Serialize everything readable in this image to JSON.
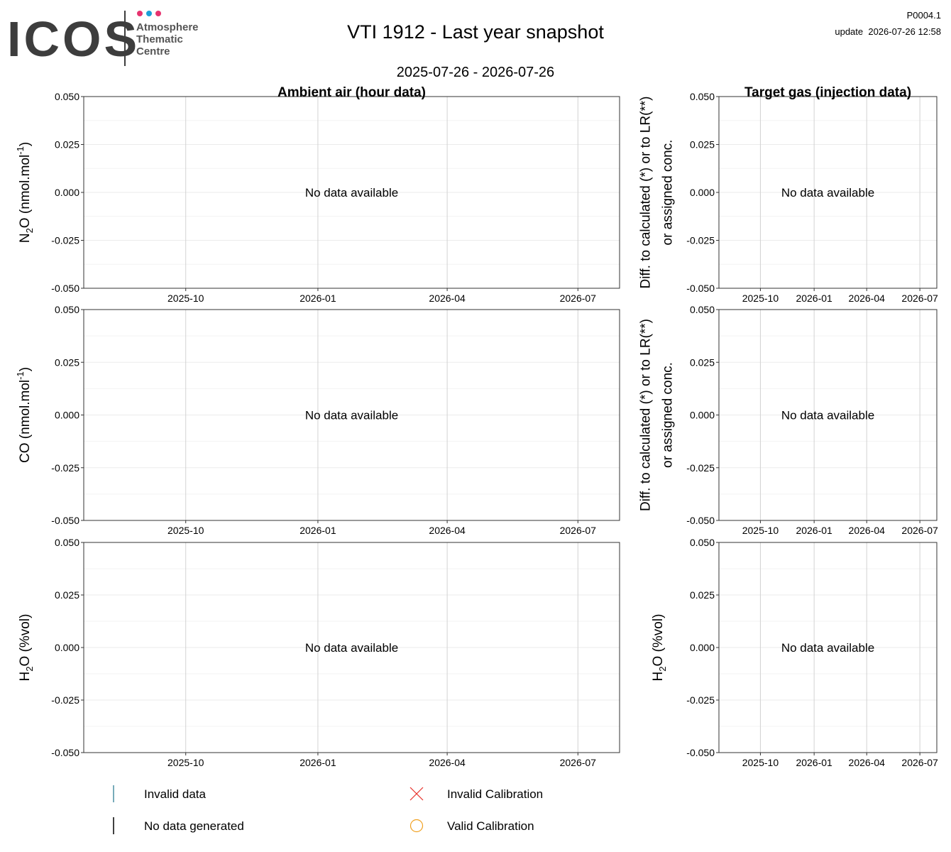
{
  "header": {
    "logo": "ICOS",
    "logo_lines": [
      "Atmosphere",
      "Thematic",
      "Centre"
    ],
    "title": "VTI 1912 - Last year snapshot",
    "subtitle": "2025-07-26 - 2026-07-26",
    "code": "P0004.1",
    "update": "update  2026-07-26 12:58"
  },
  "chart_data": [
    {
      "type": "line",
      "title": "Ambient air (hour data)",
      "annotation": "No data available",
      "ylabel": [
        [
          {
            "text": "N"
          },
          {
            "text": "2",
            "baseline": "sub"
          },
          {
            "text": "O (nmol.mol"
          },
          {
            "text": "-1",
            "baseline": "super"
          },
          {
            "text": ")"
          }
        ]
      ],
      "xlim": [
        "2025-07-22",
        "2026-07-30"
      ],
      "xticks": [
        {
          "value": "2025-10-01",
          "label": "2025-10"
        },
        {
          "value": "2026-01-01",
          "label": "2026-01"
        },
        {
          "value": "2026-04-01",
          "label": "2026-04"
        },
        {
          "value": "2026-07-01",
          "label": "2026-07"
        }
      ],
      "ylim": [
        -0.05,
        0.05
      ],
      "yticks": [
        {
          "value": -0.05,
          "label": "-0.050"
        },
        {
          "value": -0.025,
          "label": "-0.025"
        },
        {
          "value": 0,
          "label": "0.000"
        },
        {
          "value": 0.025,
          "label": "0.025"
        },
        {
          "value": 0.05,
          "label": "0.050"
        }
      ],
      "grid": true
    },
    {
      "type": "line",
      "title": "Target gas (injection data)",
      "annotation": "No data available",
      "ylabel": [
        [
          {
            "text": "Diff. to calculated (*) or to LR(**)"
          }
        ],
        [
          {
            "text": "or assigned conc."
          }
        ]
      ],
      "xlim": [
        "2025-07-22",
        "2026-07-30"
      ],
      "xticks": [
        {
          "value": "2025-10-01",
          "label": "2025-10"
        },
        {
          "value": "2026-01-01",
          "label": "2026-01"
        },
        {
          "value": "2026-04-01",
          "label": "2026-04"
        },
        {
          "value": "2026-07-01",
          "label": "2026-07"
        }
      ],
      "ylim": [
        -0.05,
        0.05
      ],
      "yticks": [
        {
          "value": -0.05,
          "label": "-0.050"
        },
        {
          "value": -0.025,
          "label": "-0.025"
        },
        {
          "value": 0,
          "label": "0.000"
        },
        {
          "value": 0.025,
          "label": "0.025"
        },
        {
          "value": 0.05,
          "label": "0.050"
        }
      ],
      "grid": true
    },
    {
      "type": "line",
      "annotation": "No data available",
      "ylabel": [
        [
          {
            "text": "CO (nmol.mol"
          },
          {
            "text": "-1",
            "baseline": "super"
          },
          {
            "text": ")"
          }
        ]
      ],
      "xlim": [
        "2025-07-22",
        "2026-07-30"
      ],
      "xticks": [
        {
          "value": "2025-10-01",
          "label": "2025-10"
        },
        {
          "value": "2026-01-01",
          "label": "2026-01"
        },
        {
          "value": "2026-04-01",
          "label": "2026-04"
        },
        {
          "value": "2026-07-01",
          "label": "2026-07"
        }
      ],
      "ylim": [
        -0.05,
        0.05
      ],
      "yticks": [
        {
          "value": -0.05,
          "label": "-0.050"
        },
        {
          "value": -0.025,
          "label": "-0.025"
        },
        {
          "value": 0,
          "label": "0.000"
        },
        {
          "value": 0.025,
          "label": "0.025"
        },
        {
          "value": 0.05,
          "label": "0.050"
        }
      ],
      "grid": true
    },
    {
      "type": "line",
      "annotation": "No data available",
      "ylabel": [
        [
          {
            "text": "Diff. to calculated (*) or to LR(**)"
          }
        ],
        [
          {
            "text": "or assigned conc."
          }
        ]
      ],
      "xlim": [
        "2025-07-22",
        "2026-07-30"
      ],
      "xticks": [
        {
          "value": "2025-10-01",
          "label": "2025-10"
        },
        {
          "value": "2026-01-01",
          "label": "2026-01"
        },
        {
          "value": "2026-04-01",
          "label": "2026-04"
        },
        {
          "value": "2026-07-01",
          "label": "2026-07"
        }
      ],
      "ylim": [
        -0.05,
        0.05
      ],
      "yticks": [
        {
          "value": -0.05,
          "label": "-0.050"
        },
        {
          "value": -0.025,
          "label": "-0.025"
        },
        {
          "value": 0,
          "label": "0.000"
        },
        {
          "value": 0.025,
          "label": "0.025"
        },
        {
          "value": 0.05,
          "label": "0.050"
        }
      ],
      "grid": true
    },
    {
      "type": "line",
      "annotation": "No data available",
      "ylabel": [
        [
          {
            "text": "H"
          },
          {
            "text": "2",
            "baseline": "sub"
          },
          {
            "text": "O (%vol)"
          }
        ]
      ],
      "xlim": [
        "2025-07-22",
        "2026-07-30"
      ],
      "xticks": [
        {
          "value": "2025-10-01",
          "label": "2025-10"
        },
        {
          "value": "2026-01-01",
          "label": "2026-01"
        },
        {
          "value": "2026-04-01",
          "label": "2026-04"
        },
        {
          "value": "2026-07-01",
          "label": "2026-07"
        }
      ],
      "ylim": [
        -0.05,
        0.05
      ],
      "yticks": [
        {
          "value": -0.05,
          "label": "-0.050"
        },
        {
          "value": -0.025,
          "label": "-0.025"
        },
        {
          "value": 0,
          "label": "0.000"
        },
        {
          "value": 0.025,
          "label": "0.025"
        },
        {
          "value": 0.05,
          "label": "0.050"
        }
      ],
      "grid": true
    },
    {
      "type": "line",
      "annotation": "No data available",
      "ylabel": [
        [
          {
            "text": "H"
          },
          {
            "text": "2",
            "baseline": "sub"
          },
          {
            "text": "O (%vol)"
          }
        ]
      ],
      "xlim": [
        "2025-07-22",
        "2026-07-30"
      ],
      "xticks": [
        {
          "value": "2025-10-01",
          "label": "2025-10"
        },
        {
          "value": "2026-01-01",
          "label": "2026-01"
        },
        {
          "value": "2026-04-01",
          "label": "2026-04"
        },
        {
          "value": "2026-07-01",
          "label": "2026-07"
        }
      ],
      "ylim": [
        -0.05,
        0.05
      ],
      "yticks": [
        {
          "value": -0.05,
          "label": "-0.050"
        },
        {
          "value": -0.025,
          "label": "-0.025"
        },
        {
          "value": 0,
          "label": "0.000"
        },
        {
          "value": 0.025,
          "label": "0.025"
        },
        {
          "value": 0.05,
          "label": "0.050"
        }
      ],
      "grid": true
    }
  ],
  "legend": {
    "items": [
      {
        "label": "Invalid data",
        "marker": "bar",
        "color": "#4a8fa3"
      },
      {
        "label": "No data generated",
        "marker": "bar",
        "color": "#000000"
      },
      {
        "label": "Invalid Calibration",
        "marker": "cross",
        "color": "#e8302a"
      },
      {
        "label": "Valid Calibration",
        "marker": "circle",
        "color": "#f0a020"
      }
    ]
  }
}
